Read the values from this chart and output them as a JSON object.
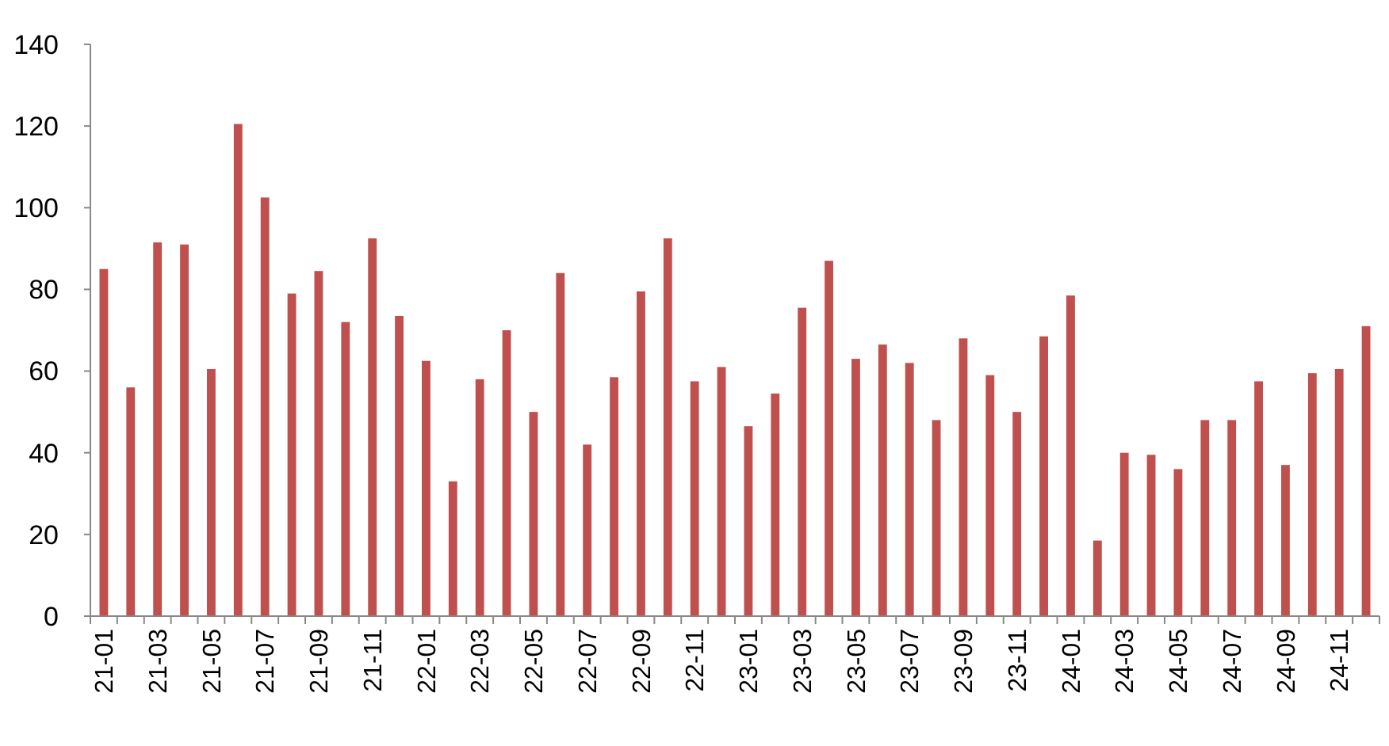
{
  "chart_data": {
    "type": "bar",
    "categories": [
      "21-01",
      null,
      "21-03",
      null,
      "21-05",
      null,
      "21-07",
      null,
      "21-09",
      null,
      "21-11",
      null,
      "22-01",
      null,
      "22-03",
      null,
      "22-05",
      null,
      "22-07",
      null,
      "22-09",
      null,
      "22-11",
      null,
      "23-01",
      null,
      "23-03",
      null,
      "23-05",
      null,
      "23-07",
      null,
      "23-09",
      null,
      "23-11",
      null,
      "24-01",
      null,
      "24-03",
      null,
      "24-05",
      null,
      "24-07",
      null,
      "24-09",
      null,
      "24-11",
      null
    ],
    "values": [
      85,
      56,
      91.5,
      91,
      60.5,
      120.5,
      102.5,
      79,
      84.5,
      72,
      92.5,
      73.5,
      62.5,
      33,
      58,
      70,
      50,
      84,
      42,
      58.5,
      79.5,
      92.5,
      57.5,
      61,
      46.5,
      54.5,
      75.5,
      87,
      63,
      66.5,
      62,
      48,
      68,
      59,
      50,
      68.5,
      78.5,
      18.5,
      40,
      39.5,
      36,
      48,
      48,
      57.5,
      37,
      59.5,
      60.5,
      71
    ],
    "color": "#c0504d",
    "ylim": [
      0,
      140
    ],
    "yticks": [
      0,
      20,
      40,
      60,
      80,
      100,
      120,
      140
    ],
    "grid": false
  }
}
